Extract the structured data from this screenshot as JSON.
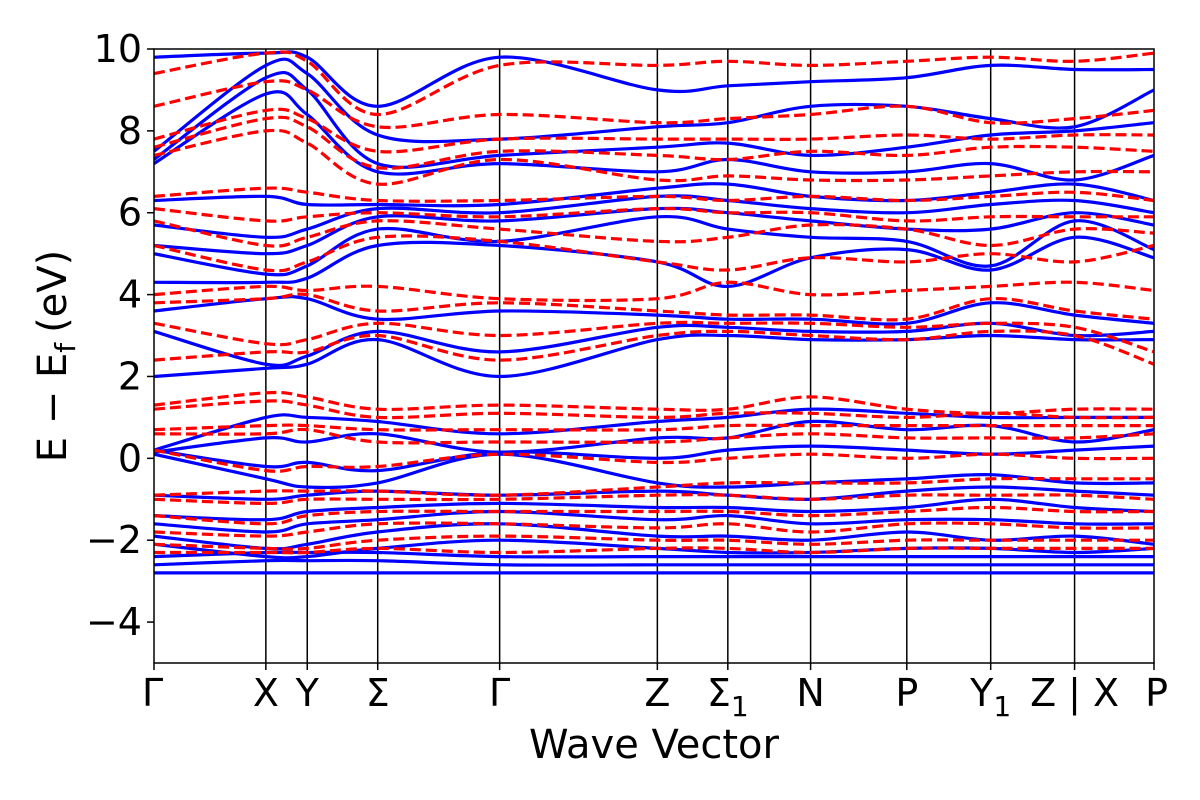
{
  "chart_data": {
    "type": "line",
    "title": "",
    "xlabel": "Wave Vector",
    "ylabel": "E − E",
    "ylabel_subscript": "f",
    "ylabel_unit": "(eV)",
    "ylim": [
      -5,
      10
    ],
    "yticks": [
      -4,
      -2,
      0,
      2,
      4,
      6,
      8,
      10
    ],
    "ytick_labels": [
      "−4",
      "−2",
      "0",
      "2",
      "4",
      "6",
      "8",
      "10"
    ],
    "kpath_ticks": [
      {
        "label": "Γ",
        "sub": "",
        "k": 0.0
      },
      {
        "label": "X",
        "sub": "",
        "k": 1.0
      },
      {
        "label": "Y",
        "sub": "",
        "k": 1.37
      },
      {
        "label": "Σ",
        "sub": "",
        "k": 2.0
      },
      {
        "label": "Γ",
        "sub": "",
        "k": 3.09
      },
      {
        "label": "Z",
        "sub": "",
        "k": 4.5
      },
      {
        "label": "Σ",
        "sub": "1",
        "k": 5.13
      },
      {
        "label": "N",
        "sub": "",
        "k": 5.87
      },
      {
        "label": "P",
        "sub": "",
        "k": 6.73
      },
      {
        "label": "Y",
        "sub": "1",
        "k": 7.48
      },
      {
        "label": "Z | X",
        "sub": "",
        "k": 8.23
      },
      {
        "label": "P",
        "sub": "",
        "k": 8.94
      }
    ],
    "grid": false,
    "legend": "none",
    "series": [
      {
        "style": "solid",
        "color": "#0000ff",
        "bands": [
          [
            -2.8,
            -2.8,
            -2.8,
            -2.8,
            -2.8,
            -2.8,
            -2.8,
            -2.8,
            -2.8,
            -2.8,
            -2.8,
            -2.8
          ],
          [
            -2.6,
            -2.5,
            -2.5,
            -2.5,
            -2.6,
            -2.6,
            -2.6,
            -2.6,
            -2.6,
            -2.6,
            -2.6,
            -2.6
          ],
          [
            -2.4,
            -2.3,
            -2.3,
            -2.3,
            -2.4,
            -2.4,
            -2.4,
            -2.4,
            -2.4,
            -2.4,
            -2.4,
            -2.4
          ],
          [
            -2.1,
            -2.4,
            -2.4,
            -2.2,
            -2.0,
            -2.2,
            -2.3,
            -2.3,
            -2.2,
            -2.2,
            -2.3,
            -2.2
          ],
          [
            -1.9,
            -2.2,
            -2.1,
            -1.8,
            -1.6,
            -1.9,
            -1.9,
            -2.0,
            -1.8,
            -2.0,
            -1.9,
            -2.1
          ],
          [
            -1.6,
            -1.8,
            -1.6,
            -1.5,
            -1.3,
            -1.5,
            -1.4,
            -1.6,
            -1.5,
            -1.5,
            -1.6,
            -1.6
          ],
          [
            -1.4,
            -1.5,
            -1.3,
            -1.2,
            -1.1,
            -1.2,
            -1.2,
            -1.3,
            -1.2,
            -1.0,
            -1.2,
            -1.3
          ],
          [
            -0.9,
            -1.0,
            -0.9,
            -0.8,
            -0.9,
            -0.8,
            -0.9,
            -1.0,
            -0.8,
            -0.7,
            -0.8,
            -0.9
          ],
          [
            0.1,
            -0.5,
            -0.7,
            -0.6,
            0.1,
            -0.6,
            -0.7,
            -0.6,
            -0.5,
            -0.4,
            -0.6,
            -0.6
          ],
          [
            0.2,
            -0.2,
            -0.1,
            -0.3,
            0.15,
            0.0,
            0.2,
            0.3,
            0.2,
            0.1,
            0.2,
            0.3
          ],
          [
            0.15,
            0.5,
            0.4,
            0.6,
            0.15,
            0.5,
            0.5,
            0.9,
            0.7,
            0.8,
            0.4,
            0.7
          ],
          [
            0.2,
            1.0,
            1.0,
            0.9,
            0.6,
            0.9,
            1.0,
            1.2,
            1.1,
            1.0,
            1.0,
            1.0
          ],
          [
            2.0,
            2.2,
            2.3,
            2.9,
            2.0,
            2.9,
            3.0,
            2.9,
            2.9,
            3.0,
            2.9,
            2.9
          ],
          [
            3.1,
            2.3,
            2.5,
            3.1,
            2.6,
            3.2,
            3.2,
            3.1,
            3.1,
            3.3,
            3.0,
            3.1
          ],
          [
            3.6,
            3.9,
            3.9,
            3.4,
            3.6,
            3.5,
            3.4,
            3.4,
            3.3,
            3.8,
            3.5,
            3.3
          ],
          [
            4.3,
            4.3,
            4.4,
            5.2,
            5.2,
            4.8,
            4.2,
            4.9,
            5.1,
            4.6,
            5.4,
            4.9
          ],
          [
            5.0,
            4.5,
            4.7,
            5.6,
            5.3,
            5.9,
            5.6,
            5.4,
            5.3,
            4.7,
            5.8,
            5.1
          ],
          [
            5.2,
            5.0,
            5.2,
            5.9,
            5.8,
            6.1,
            6.0,
            5.8,
            5.6,
            5.6,
            6.0,
            5.7
          ],
          [
            5.7,
            5.4,
            5.6,
            6.1,
            6.0,
            6.4,
            6.3,
            6.1,
            6.0,
            6.2,
            6.3,
            6.0
          ],
          [
            6.3,
            6.4,
            6.2,
            6.2,
            6.2,
            6.6,
            6.7,
            6.4,
            6.3,
            6.5,
            6.7,
            6.3
          ],
          [
            7.2,
            8.9,
            8.4,
            7.0,
            7.2,
            7.0,
            7.3,
            7.0,
            7.0,
            7.2,
            6.8,
            7.4
          ],
          [
            7.3,
            9.3,
            9.0,
            7.2,
            7.4,
            7.6,
            7.7,
            7.4,
            7.6,
            7.9,
            8.0,
            8.2
          ],
          [
            7.5,
            9.6,
            9.4,
            7.9,
            7.8,
            8.1,
            8.2,
            8.6,
            8.6,
            8.3,
            8.1,
            9.0
          ],
          [
            9.8,
            9.9,
            9.8,
            8.6,
            9.8,
            9.0,
            9.1,
            9.2,
            9.3,
            9.6,
            9.5,
            9.5
          ]
        ]
      },
      {
        "style": "dashed",
        "color": "#ff0000",
        "bands": [
          [
            -2.3,
            -2.3,
            -2.3,
            -2.2,
            -2.3,
            -2.2,
            -2.2,
            -2.3,
            -2.2,
            -2.2,
            -2.2,
            -2.2
          ],
          [
            -2.1,
            -2.2,
            -2.2,
            -2.0,
            -1.9,
            -2.0,
            -2.0,
            -2.1,
            -2.0,
            -2.0,
            -2.0,
            -2.0
          ],
          [
            -1.8,
            -1.9,
            -1.8,
            -1.6,
            -1.6,
            -1.7,
            -1.6,
            -1.8,
            -1.6,
            -1.6,
            -1.7,
            -1.7
          ],
          [
            -1.4,
            -1.6,
            -1.4,
            -1.3,
            -1.3,
            -1.3,
            -1.3,
            -1.4,
            -1.3,
            -1.2,
            -1.3,
            -1.3
          ],
          [
            -1.0,
            -1.1,
            -1.0,
            -1.0,
            -1.0,
            -0.9,
            -0.9,
            -1.0,
            -0.9,
            -0.9,
            -0.9,
            -1.0
          ],
          [
            -0.9,
            -0.8,
            -0.8,
            -0.8,
            -0.9,
            -0.7,
            -0.6,
            -0.6,
            -0.6,
            -0.5,
            -0.5,
            -0.5
          ],
          [
            0.2,
            -0.3,
            -0.2,
            -0.2,
            0.1,
            -0.1,
            0.0,
            0.1,
            0.0,
            0.1,
            0.0,
            0.0
          ],
          [
            0.6,
            0.6,
            0.7,
            0.4,
            0.4,
            0.4,
            0.5,
            0.6,
            0.5,
            0.5,
            0.5,
            0.6
          ],
          [
            0.7,
            0.8,
            0.8,
            0.7,
            0.7,
            0.7,
            0.8,
            0.8,
            0.8,
            0.8,
            0.8,
            0.8
          ],
          [
            1.2,
            1.4,
            1.3,
            1.0,
            1.1,
            1.0,
            1.1,
            1.1,
            1.0,
            1.1,
            1.0,
            1.0
          ],
          [
            1.3,
            1.6,
            1.5,
            1.2,
            1.3,
            1.2,
            1.2,
            1.5,
            1.2,
            1.1,
            1.2,
            1.2
          ],
          [
            2.4,
            2.6,
            2.6,
            3.0,
            2.4,
            3.0,
            3.1,
            3.0,
            2.9,
            3.1,
            3.0,
            2.3
          ],
          [
            3.3,
            2.8,
            2.9,
            3.3,
            3.0,
            3.3,
            3.3,
            3.3,
            3.2,
            3.3,
            3.2,
            2.6
          ],
          [
            3.8,
            3.9,
            4.0,
            3.6,
            3.8,
            3.6,
            3.5,
            3.5,
            3.4,
            3.9,
            3.6,
            3.4
          ],
          [
            4.0,
            4.2,
            4.1,
            4.2,
            3.9,
            3.9,
            4.3,
            4.0,
            4.1,
            4.2,
            4.3,
            4.1
          ],
          [
            5.2,
            4.6,
            4.8,
            5.4,
            5.3,
            4.8,
            4.6,
            4.9,
            4.8,
            5.0,
            4.8,
            5.2
          ],
          [
            5.8,
            5.2,
            5.4,
            5.8,
            5.6,
            5.3,
            5.4,
            5.7,
            5.6,
            5.2,
            5.6,
            5.5
          ],
          [
            6.1,
            5.8,
            5.9,
            6.0,
            5.9,
            6.1,
            6.0,
            6.0,
            5.8,
            5.9,
            5.9,
            5.9
          ],
          [
            6.4,
            6.6,
            6.5,
            6.3,
            6.3,
            6.4,
            6.3,
            6.4,
            6.3,
            6.4,
            6.5,
            6.3
          ],
          [
            7.4,
            8.0,
            7.7,
            6.7,
            7.3,
            6.8,
            6.9,
            6.8,
            6.8,
            6.9,
            7.0,
            7.0
          ],
          [
            7.6,
            8.3,
            8.1,
            7.1,
            7.5,
            7.4,
            7.3,
            7.5,
            7.4,
            7.6,
            7.6,
            7.5
          ],
          [
            7.8,
            8.5,
            8.3,
            7.5,
            7.8,
            7.8,
            7.8,
            7.8,
            7.9,
            7.8,
            7.9,
            7.9
          ],
          [
            8.6,
            9.2,
            9.0,
            8.1,
            8.4,
            8.2,
            8.3,
            8.4,
            8.6,
            8.2,
            8.3,
            8.5
          ],
          [
            9.4,
            9.9,
            9.7,
            8.4,
            9.6,
            9.6,
            9.7,
            9.6,
            9.7,
            9.8,
            9.7,
            9.9
          ]
        ]
      }
    ]
  }
}
